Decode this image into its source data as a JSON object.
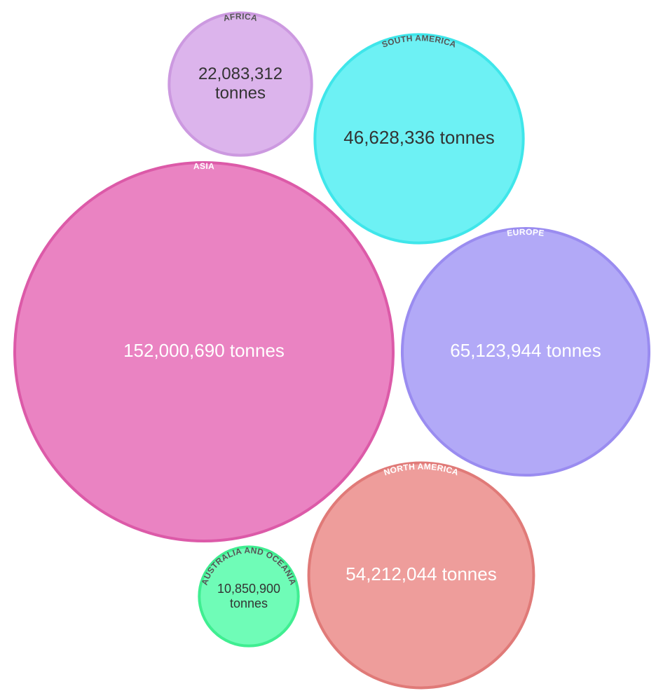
{
  "chart_data": {
    "type": "bubble",
    "unit": "tonnes",
    "series": [
      {
        "name": "AFRICA",
        "value": 22083312,
        "value_label": "22,083,312 tonnes",
        "fill": "#dcb4ec",
        "stroke": "#cc99e0",
        "text_color": "#333333",
        "label_color": "#555555"
      },
      {
        "name": "SOUTH AMERICA",
        "value": 46628336,
        "value_label": "46,628,336 tonnes",
        "fill": "#6df1f4",
        "stroke": "#3fe6ea",
        "text_color": "#333333",
        "label_color": "#555555"
      },
      {
        "name": "ASIA",
        "value": 152000690,
        "value_label": "152,000,690 tonnes",
        "fill": "#ea83c2",
        "stroke": "#dc5aa8",
        "text_color": "#ffffff",
        "label_color": "#ffffff"
      },
      {
        "name": "EUROPE",
        "value": 65123944,
        "value_label": "65,123,944 tonnes",
        "fill": "#b2a9f7",
        "stroke": "#9a8cf0",
        "text_color": "#ffffff",
        "label_color": "#ffffff"
      },
      {
        "name": "NORTH AMERICA",
        "value": 54212044,
        "value_label": "54,212,044 tonnes",
        "fill": "#ee9d9b",
        "stroke": "#e07a78",
        "text_color": "#ffffff",
        "label_color": "#ffffff"
      },
      {
        "name": "AUSTRALIA AND OCEANIA",
        "value": 10850900,
        "value_label": "10,850,900 tonnes",
        "fill": "#6ffcb7",
        "stroke": "#3fee91",
        "text_color": "#333333",
        "label_color": "#555555"
      }
    ]
  }
}
